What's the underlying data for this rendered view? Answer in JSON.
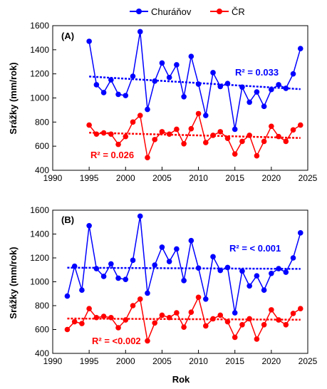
{
  "chart_data": [
    {
      "type": "line",
      "panel_label": "(A)",
      "xlabel": "",
      "ylabel": "Srážky (mm/rok)",
      "xlim": [
        1990,
        2025
      ],
      "ylim": [
        400,
        1600
      ],
      "xticks": [
        "1990",
        "1995",
        "2000",
        "2005",
        "2010",
        "2015",
        "2020",
        "2025"
      ],
      "yticks": [
        "400",
        "600",
        "800",
        "1000",
        "1200",
        "1400",
        "1600"
      ],
      "grid": false,
      "legend_position": "top-center",
      "series": [
        {
          "name": "Churáňov",
          "color": "#0000ff",
          "x": [
            1995,
            1996,
            1997,
            1998,
            1999,
            2000,
            2001,
            2002,
            2003,
            2004,
            2005,
            2006,
            2007,
            2008,
            2009,
            2010,
            2011,
            2012,
            2013,
            2014,
            2015,
            2016,
            2017,
            2018,
            2019,
            2020,
            2021,
            2022,
            2023,
            2024
          ],
          "values": [
            1470,
            1110,
            1045,
            1150,
            1030,
            1020,
            1180,
            1550,
            905,
            1140,
            1290,
            1170,
            1275,
            1010,
            1345,
            1115,
            855,
            1210,
            1095,
            1120,
            740,
            1090,
            965,
            1050,
            930,
            1070,
            1110,
            1080,
            1200,
            1410
          ],
          "trend": [
            1178,
            1073
          ],
          "r2_label": "R² = 0.033"
        },
        {
          "name": "ČR",
          "color": "#ff0000",
          "x": [
            1995,
            1996,
            1997,
            1998,
            1999,
            2000,
            2001,
            2002,
            2003,
            2004,
            2005,
            2006,
            2007,
            2008,
            2009,
            2010,
            2011,
            2012,
            2013,
            2014,
            2015,
            2016,
            2017,
            2018,
            2019,
            2020,
            2021,
            2022,
            2023,
            2024
          ],
          "values": [
            775,
            700,
            710,
            700,
            615,
            680,
            800,
            855,
            505,
            655,
            720,
            700,
            740,
            620,
            745,
            870,
            630,
            690,
            720,
            665,
            535,
            640,
            690,
            520,
            640,
            765,
            680,
            640,
            735,
            775
          ],
          "trend": [
            712,
            668
          ],
          "r2_label": "R² = 0.026"
        }
      ]
    },
    {
      "type": "line",
      "panel_label": "(B)",
      "xlabel": "Rok",
      "ylabel": "Srážky (mm/rok)",
      "xlim": [
        1990,
        2025
      ],
      "ylim": [
        400,
        1600
      ],
      "xticks": [
        "1990",
        "1995",
        "2000",
        "2005",
        "2010",
        "2015",
        "2020",
        "2025"
      ],
      "yticks": [
        "400",
        "600",
        "800",
        "1000",
        "1200",
        "1400",
        "1600"
      ],
      "grid": false,
      "series": [
        {
          "name": "Churáňov",
          "color": "#0000ff",
          "x": [
            1992,
            1993,
            1994,
            1995,
            1996,
            1997,
            1998,
            1999,
            2000,
            2001,
            2002,
            2003,
            2004,
            2005,
            2006,
            2007,
            2008,
            2009,
            2010,
            2011,
            2012,
            2013,
            2014,
            2015,
            2016,
            2017,
            2018,
            2019,
            2020,
            2021,
            2022,
            2023,
            2024
          ],
          "values": [
            880,
            1130,
            930,
            1470,
            1110,
            1045,
            1150,
            1030,
            1020,
            1180,
            1550,
            905,
            1140,
            1290,
            1170,
            1275,
            1010,
            1345,
            1115,
            855,
            1210,
            1095,
            1120,
            740,
            1090,
            965,
            1050,
            930,
            1070,
            1110,
            1080,
            1200,
            1410
          ],
          "trend": [
            1118,
            1108
          ],
          "r2_label": "R² = < 0.001"
        },
        {
          "name": "ČR",
          "color": "#ff0000",
          "x": [
            1992,
            1993,
            1994,
            1995,
            1996,
            1997,
            1998,
            1999,
            2000,
            2001,
            2002,
            2003,
            2004,
            2005,
            2006,
            2007,
            2008,
            2009,
            2010,
            2011,
            2012,
            2013,
            2014,
            2015,
            2016,
            2017,
            2018,
            2019,
            2020,
            2021,
            2022,
            2023,
            2024
          ],
          "values": [
            600,
            665,
            650,
            775,
            700,
            710,
            700,
            615,
            680,
            800,
            855,
            505,
            655,
            720,
            700,
            740,
            620,
            745,
            870,
            630,
            690,
            720,
            665,
            535,
            640,
            690,
            520,
            640,
            765,
            680,
            640,
            735,
            775
          ],
          "trend": [
            692,
            682
          ],
          "r2_label": "R² = <0.002"
        }
      ]
    }
  ]
}
